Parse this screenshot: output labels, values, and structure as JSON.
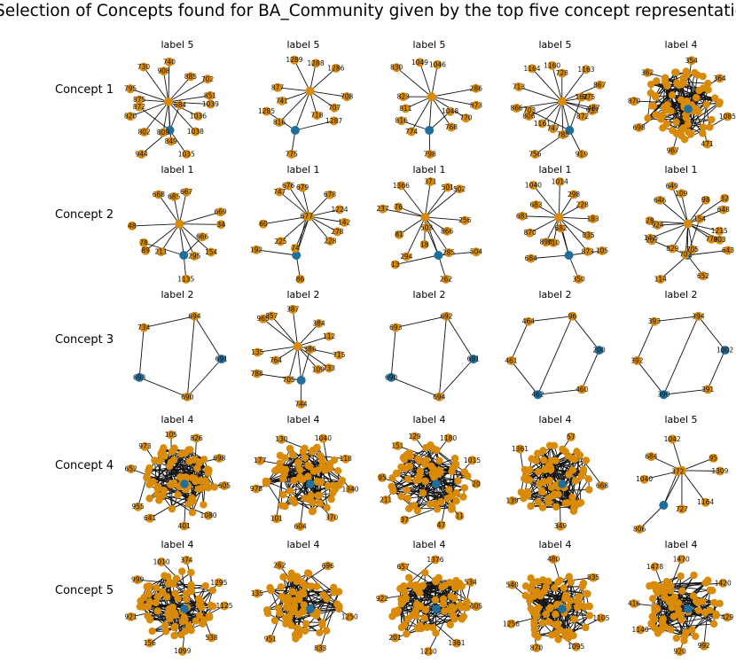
{
  "title": "Selection of Concepts found for BA_Community given by the top five concept representations",
  "rows": [
    {
      "label": "Concept 1",
      "panels": [
        {
          "title": "label 5",
          "labels": [
            "1039",
            "1036",
            "1038",
            "1035",
            "849",
            "809",
            "802",
            "944",
            "820",
            "875",
            "795",
            "872",
            "730",
            "908",
            "740",
            "684",
            "885",
            "702",
            "851"
          ]
        },
        {
          "title": "label 5",
          "labels": [
            "708",
            "707",
            "718",
            "775",
            "816",
            "741",
            "877",
            "1285",
            "1289",
            "1288",
            "1286",
            "1287"
          ]
        },
        {
          "title": "label 5",
          "labels": [
            "873",
            "770",
            "768",
            "798",
            "774",
            "811",
            "823",
            "816",
            "830",
            "1049",
            "1046",
            "1048",
            "286"
          ]
        },
        {
          "title": "label 5",
          "labels": [
            "487",
            "933",
            "872",
            "919",
            "785",
            "747",
            "1161",
            "756",
            "806",
            "866",
            "713",
            "703",
            "1164",
            "1160",
            "728",
            "162",
            "1163",
            "867",
            "975"
          ]
        },
        {
          "title": "label 4",
          "labels": [
            "1085",
            "471",
            "967",
            "698",
            "870",
            "362",
            "354",
            "364"
          ]
        }
      ]
    },
    {
      "label": "Concept 2",
      "panels": [
        {
          "title": "label 1",
          "labels": [
            "34",
            "154",
            "295",
            "1135",
            "211",
            "89",
            "48",
            "78",
            "668",
            "685",
            "667",
            "666",
            "669"
          ]
        },
        {
          "title": "label 1",
          "labels": [
            "142",
            "278",
            "228",
            "86",
            "74",
            "225",
            "60",
            "192",
            "747",
            "676",
            "679",
            "677",
            "678",
            "1224"
          ]
        },
        {
          "title": "label 1",
          "labels": [
            "256",
            "866",
            "285",
            "262",
            "18",
            "294",
            "81",
            "13",
            "237",
            "76",
            "1366",
            "503",
            "371",
            "501",
            "502",
            "504"
          ]
        },
        {
          "title": "label 1",
          "labels": [
            "183",
            "835",
            "873",
            "350",
            "710",
            "890",
            "870",
            "684",
            "681",
            "683",
            "1040",
            "682",
            "1014",
            "298",
            "228",
            "105"
          ]
        },
        {
          "title": "label 1",
          "labels": [
            "1215",
            "803",
            "779",
            "652",
            "705",
            "702",
            "829",
            "114",
            "142",
            "924",
            "28",
            "207",
            "646",
            "649",
            "109",
            "154",
            "98",
            "32",
            "648",
            "643"
          ]
        }
      ]
    },
    {
      "label": "Concept 3",
      "panels": [
        {
          "title": "label 2",
          "labels": [
            "694",
            "691",
            "690",
            "693",
            "734"
          ]
        },
        {
          "title": "label 2",
          "labels": [
            "715",
            "733",
            "109",
            "744",
            "705",
            "764",
            "135",
            "788",
            "965",
            "857",
            "387",
            "386",
            "384",
            "112"
          ]
        },
        {
          "title": "label 2",
          "labels": [
            "692",
            "691",
            "694",
            "690",
            "693"
          ]
        },
        {
          "title": "label 2",
          "labels": [
            "96",
            "200",
            "460",
            "462",
            "461",
            "464"
          ]
        },
        {
          "title": "label 2",
          "labels": [
            "394",
            "1002",
            "391",
            "390",
            "392",
            "393"
          ]
        }
      ]
    },
    {
      "label": "Concept 4",
      "panels": [
        {
          "title": "label 4",
          "labels": [
            "605",
            "1080",
            "401",
            "641",
            "955",
            "652",
            "973",
            "105",
            "826",
            "698"
          ]
        },
        {
          "title": "label 4",
          "labels": [
            "1340",
            "370",
            "604",
            "101",
            "978",
            "177",
            "130",
            "1040",
            "118"
          ]
        },
        {
          "title": "label 4",
          "labels": [
            "20",
            "11",
            "47",
            "37",
            "211",
            "95",
            "151",
            "129",
            "1180",
            "1015"
          ]
        },
        {
          "title": "label 4",
          "labels": [
            "668",
            "349",
            "139",
            "1361",
            "57"
          ]
        },
        {
          "title": "label 5",
          "labels": [
            "1309",
            "1164",
            "727",
            "806",
            "1040",
            "684",
            "1042",
            "372",
            "95"
          ]
        }
      ]
    },
    {
      "label": "Concept 5",
      "panels": [
        {
          "title": "label 4",
          "labels": [
            "1125",
            "538",
            "1099",
            "156",
            "921",
            "999",
            "1010",
            "374",
            "1295"
          ]
        },
        {
          "title": "label 4",
          "labels": [
            "1250",
            "833",
            "951",
            "135",
            "262",
            "696"
          ]
        },
        {
          "title": "label 4",
          "labels": [
            "605",
            "1361",
            "1210",
            "201",
            "922",
            "657",
            "1376",
            "534"
          ]
        },
        {
          "title": "label 4",
          "labels": [
            "1105",
            "1095",
            "870",
            "1256",
            "540",
            "480",
            "835"
          ]
        },
        {
          "title": "label 4",
          "labels": [
            "429",
            "992",
            "920",
            "1140",
            "416",
            "1478",
            "1470",
            "1420"
          ]
        }
      ]
    }
  ]
}
